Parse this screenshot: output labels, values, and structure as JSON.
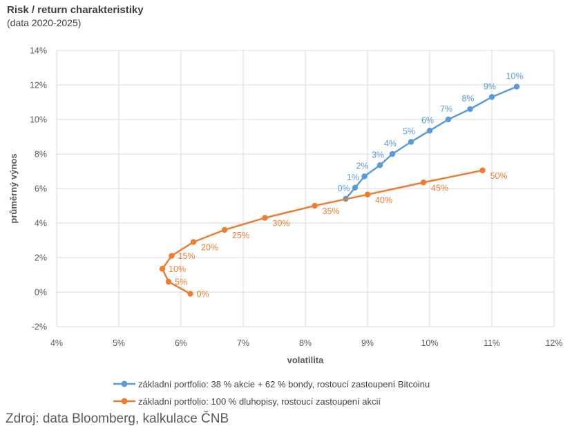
{
  "header": {
    "title": "Risk / return charakteristiky",
    "subtitle": "(data 2020-2025)"
  },
  "footer": {
    "source": "Zdroj: data Bloomberg, kalkulace ČNB"
  },
  "chart_data": {
    "type": "line",
    "title": "Risk / return charakteristiky",
    "subtitle": "(data 2020-2025)",
    "xlabel": "volatilita",
    "ylabel": "průměrný výnos",
    "xlim": [
      4,
      12
    ],
    "ylim": [
      -2,
      14
    ],
    "x_ticks": [
      4,
      5,
      6,
      7,
      8,
      9,
      10,
      11,
      12
    ],
    "y_ticks": [
      -2,
      0,
      2,
      4,
      6,
      8,
      10,
      12,
      14
    ],
    "tick_suffix": "%",
    "grid": true,
    "legend_position": "bottom",
    "colors": {
      "grid": "#d9d9d9",
      "axis_text": "#595959",
      "legend_text": "#404040"
    },
    "series": [
      {
        "name": "základní portfolio: 38 % akcie + 62 % bondy, rostoucí zastoupení Bitcoinu",
        "color": "#5B9BD5",
        "label_placement": "above",
        "points": [
          {
            "label": "0%",
            "x": 8.65,
            "y": 5.4
          },
          {
            "label": "1%",
            "x": 8.8,
            "y": 6.05
          },
          {
            "label": "2%",
            "x": 8.95,
            "y": 6.7
          },
          {
            "label": "3%",
            "x": 9.2,
            "y": 7.35
          },
          {
            "label": "4%",
            "x": 9.4,
            "y": 8.0
          },
          {
            "label": "5%",
            "x": 9.7,
            "y": 8.7
          },
          {
            "label": "6%",
            "x": 10.0,
            "y": 9.35
          },
          {
            "label": "7%",
            "x": 10.3,
            "y": 10.0
          },
          {
            "label": "8%",
            "x": 10.65,
            "y": 10.6
          },
          {
            "label": "9%",
            "x": 11.0,
            "y": 11.3
          },
          {
            "label": "10%",
            "x": 11.4,
            "y": 11.9
          }
        ]
      },
      {
        "name": "základní portfolio: 100 % dluhopisy, rostoucí zastoupení akcií",
        "color": "#ED7D31",
        "label_placement": "right",
        "points": [
          {
            "label": "0%",
            "x": 6.15,
            "y": -0.1,
            "label_pos": "right"
          },
          {
            "label": "5%",
            "x": 5.8,
            "y": 0.6,
            "label_pos": "right"
          },
          {
            "label": "10%",
            "x": 5.7,
            "y": 1.35,
            "label_pos": "right"
          },
          {
            "label": "15%",
            "x": 5.85,
            "y": 2.1,
            "label_pos": "right"
          },
          {
            "label": "20%",
            "x": 6.2,
            "y": 2.9,
            "label_pos": "below-right"
          },
          {
            "label": "25%",
            "x": 6.7,
            "y": 3.6,
            "label_pos": "below-right"
          },
          {
            "label": "30%",
            "x": 7.35,
            "y": 4.3,
            "label_pos": "below-right"
          },
          {
            "label": "35%",
            "x": 8.15,
            "y": 5.0,
            "label_pos": "below-right"
          },
          {
            "label": "40%",
            "x": 9.0,
            "y": 5.65,
            "label_pos": "below-right"
          },
          {
            "label": "45%",
            "x": 9.9,
            "y": 6.35,
            "label_pos": "below-right"
          },
          {
            "label": "50%",
            "x": 10.85,
            "y": 7.05,
            "label_pos": "below-right"
          }
        ]
      }
    ]
  }
}
